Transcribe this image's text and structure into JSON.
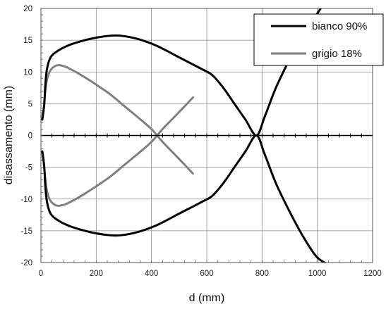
{
  "chart_data": {
    "type": "line",
    "xlabel": "d (mm)",
    "ylabel": "disassamento (mm)",
    "xlim": [
      0,
      1200
    ],
    "ylim": [
      -20,
      20
    ],
    "x_ticks": [
      "0",
      "200",
      "400",
      "600",
      "800",
      "1000",
      "1200"
    ],
    "y_ticks": [
      "20",
      "15",
      "10",
      "5",
      "0",
      "-5",
      "-10",
      "-15",
      "-20"
    ],
    "grid": true,
    "legend_position": "top-right",
    "series": [
      {
        "name": "bianco 90%",
        "color": "#000000",
        "lines": [
          [
            [
              5,
              2.5
            ],
            [
              8,
              3.5
            ],
            [
              12,
              5
            ],
            [
              16,
              8
            ],
            [
              22,
              10.5
            ],
            [
              35,
              12.3
            ],
            [
              60,
              13.3
            ],
            [
              100,
              14.2
            ],
            [
              150,
              14.9
            ],
            [
              200,
              15.4
            ],
            [
              250,
              15.7
            ],
            [
              290,
              15.7
            ],
            [
              350,
              15.2
            ],
            [
              420,
              14.1
            ],
            [
              500,
              12.3
            ],
            [
              580,
              10.5
            ],
            [
              620,
              9.5
            ],
            [
              660,
              7.5
            ],
            [
              700,
              5
            ],
            [
              740,
              2.5
            ],
            [
              780,
              0
            ],
            [
              810,
              3
            ],
            [
              850,
              7.5
            ],
            [
              900,
              12
            ],
            [
              950,
              16
            ],
            [
              1000,
              19.2
            ],
            [
              1020,
              20.5
            ]
          ],
          [
            [
              5,
              -2.5
            ],
            [
              8,
              -3.5
            ],
            [
              12,
              -5
            ],
            [
              16,
              -8
            ],
            [
              22,
              -10.5
            ],
            [
              35,
              -12.3
            ],
            [
              60,
              -13.3
            ],
            [
              100,
              -14.2
            ],
            [
              150,
              -14.9
            ],
            [
              200,
              -15.4
            ],
            [
              250,
              -15.7
            ],
            [
              290,
              -15.7
            ],
            [
              350,
              -15.2
            ],
            [
              420,
              -14.1
            ],
            [
              500,
              -12.3
            ],
            [
              580,
              -10.5
            ],
            [
              620,
              -9.5
            ],
            [
              660,
              -7.5
            ],
            [
              700,
              -5
            ],
            [
              740,
              -2.5
            ],
            [
              780,
              0
            ],
            [
              810,
              -3
            ],
            [
              850,
              -7.5
            ],
            [
              900,
              -12
            ],
            [
              950,
              -16
            ],
            [
              1000,
              -19.2
            ],
            [
              1050,
              -20.5
            ]
          ]
        ]
      },
      {
        "name": "grigio 18%",
        "color": "#7f7f7f",
        "lines": [
          [
            [
              5,
              2.5
            ],
            [
              10,
              4
            ],
            [
              15,
              6.5
            ],
            [
              22,
              8.8
            ],
            [
              35,
              10.3
            ],
            [
              55,
              11
            ],
            [
              75,
              11
            ],
            [
              100,
              10.6
            ],
            [
              150,
              9.4
            ],
            [
              200,
              8
            ],
            [
              250,
              6.5
            ],
            [
              300,
              4.7
            ],
            [
              350,
              2.9
            ],
            [
              400,
              1
            ],
            [
              440,
              -1
            ],
            [
              480,
              -2.8
            ],
            [
              520,
              -4.6
            ],
            [
              550,
              -6
            ]
          ],
          [
            [
              5,
              -2.5
            ],
            [
              10,
              -4
            ],
            [
              15,
              -6.5
            ],
            [
              22,
              -8.8
            ],
            [
              35,
              -10.3
            ],
            [
              55,
              -11
            ],
            [
              75,
              -11
            ],
            [
              100,
              -10.6
            ],
            [
              150,
              -9.4
            ],
            [
              200,
              -8
            ],
            [
              250,
              -6.5
            ],
            [
              300,
              -4.7
            ],
            [
              350,
              -2.9
            ],
            [
              400,
              -1
            ],
            [
              440,
              1
            ],
            [
              480,
              2.8
            ],
            [
              520,
              4.6
            ],
            [
              550,
              6
            ]
          ]
        ]
      }
    ]
  }
}
